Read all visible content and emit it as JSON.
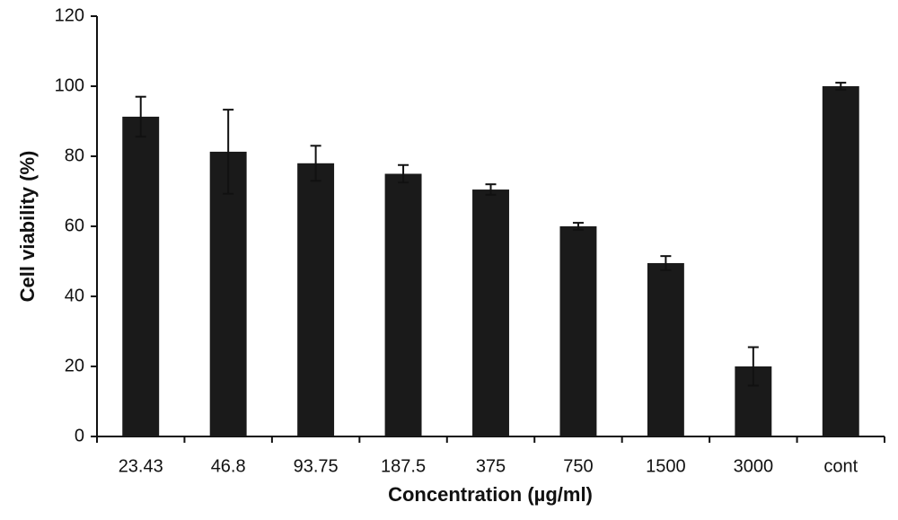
{
  "chart_data": {
    "type": "bar",
    "categories": [
      "23.43",
      "46.8",
      "93.75",
      "187.5",
      "375",
      "750",
      "1500",
      "3000",
      "cont"
    ],
    "values": [
      91.3,
      81.3,
      78,
      75,
      70.5,
      60,
      49.5,
      20,
      100
    ],
    "errors": [
      5.7,
      12,
      5,
      2.5,
      1.5,
      1,
      2,
      5.5,
      1
    ],
    "color": "#1a1a1a",
    "x_label": "Concentration (µg/ml)",
    "y_label": "Cell viability (%)",
    "ylim": [
      0,
      120
    ],
    "yticks": [
      0,
      20,
      40,
      60,
      80,
      100,
      120
    ],
    "grid": false
  }
}
